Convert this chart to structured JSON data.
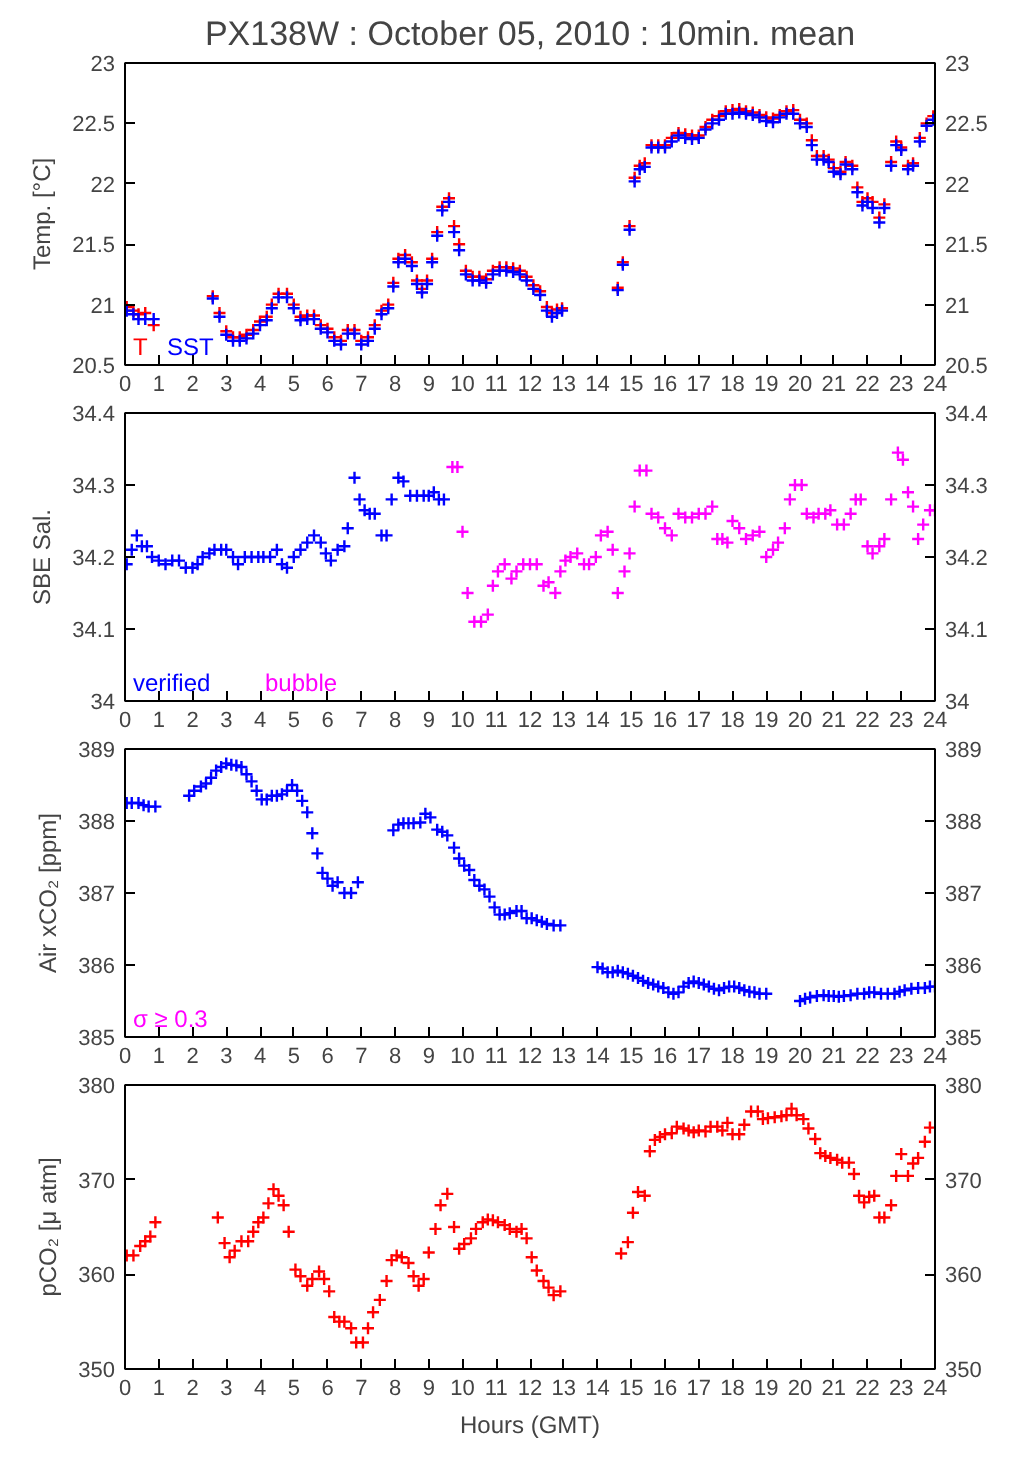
{
  "chart_data": [
    {
      "type": "scatter",
      "title": "PX138W : October 05, 2010 : 10min. mean",
      "ylabel": "Temp. [°C]",
      "marker": "cross",
      "legend": "bottom left",
      "xlim": [
        0,
        24
      ],
      "xticks": [
        0,
        1,
        2,
        3,
        4,
        5,
        6,
        7,
        8,
        9,
        10,
        11,
        12,
        13,
        14,
        15,
        16,
        17,
        18,
        19,
        20,
        21,
        22,
        23,
        24
      ],
      "ylim": [
        20.5,
        23
      ],
      "yticks": [
        20.5,
        21,
        21.5,
        22,
        22.5,
        23
      ],
      "y2lim": [
        20.5,
        23
      ],
      "y2ticks": [
        20.5,
        21,
        21.5,
        22,
        22.5,
        23
      ],
      "x": [
        0.05,
        0.25,
        0.4,
        0.6,
        0.85,
        2.6,
        2.8,
        3.0,
        3.2,
        3.4,
        3.6,
        3.8,
        4.0,
        4.2,
        4.35,
        4.55,
        4.8,
        5.0,
        5.2,
        5.4,
        5.6,
        5.8,
        6.0,
        6.2,
        6.4,
        6.6,
        6.8,
        7.0,
        7.2,
        7.4,
        7.6,
        7.8,
        7.95,
        8.1,
        8.3,
        8.5,
        8.65,
        8.8,
        8.95,
        9.1,
        9.25,
        9.4,
        9.6,
        9.75,
        9.9,
        10.1,
        10.3,
        10.5,
        10.7,
        10.9,
        11.1,
        11.3,
        11.5,
        11.7,
        11.9,
        12.1,
        12.3,
        12.5,
        12.65,
        12.8,
        12.95,
        14.6,
        14.75,
        14.95,
        15.1,
        15.25,
        15.4,
        15.6,
        15.8,
        16.0,
        16.2,
        16.4,
        16.6,
        16.8,
        17.0,
        17.2,
        17.4,
        17.6,
        17.8,
        18.0,
        18.2,
        18.4,
        18.6,
        18.8,
        19.0,
        19.2,
        19.4,
        19.6,
        19.8,
        20.0,
        20.2,
        20.35,
        20.5,
        20.7,
        20.85,
        21.0,
        21.2,
        21.35,
        21.55,
        21.7,
        21.85,
        22.0,
        22.15,
        22.35,
        22.5,
        22.7,
        22.85,
        23.0,
        23.2,
        23.35,
        23.55,
        23.75,
        23.95
      ],
      "series": [
        {
          "name": "T",
          "color": "#ff0000",
          "values": [
            20.98,
            20.95,
            20.92,
            20.93,
            20.83,
            21.07,
            20.93,
            20.78,
            20.73,
            20.73,
            20.75,
            20.79,
            20.86,
            20.9,
            21.0,
            21.09,
            21.09,
            21.0,
            20.9,
            20.91,
            20.91,
            20.83,
            20.8,
            20.73,
            20.7,
            20.79,
            20.79,
            20.7,
            20.73,
            20.83,
            20.95,
            21.0,
            21.18,
            21.38,
            21.41,
            21.35,
            21.2,
            21.13,
            21.2,
            21.38,
            21.6,
            21.81,
            21.88,
            21.65,
            21.5,
            21.28,
            21.23,
            21.23,
            21.21,
            21.28,
            21.31,
            21.31,
            21.3,
            21.28,
            21.23,
            21.16,
            21.11,
            20.98,
            20.93,
            20.96,
            20.97,
            21.14,
            21.35,
            21.65,
            22.05,
            22.15,
            22.17,
            22.32,
            22.32,
            22.32,
            22.38,
            22.42,
            22.41,
            22.4,
            22.4,
            22.47,
            22.53,
            22.56,
            22.6,
            22.61,
            22.62,
            22.6,
            22.59,
            22.57,
            22.55,
            22.54,
            22.57,
            22.6,
            22.61,
            22.53,
            22.5,
            22.36,
            22.23,
            22.23,
            22.2,
            22.13,
            22.1,
            22.18,
            22.15,
            21.97,
            21.85,
            21.88,
            21.85,
            21.72,
            21.83,
            22.18,
            22.35,
            22.3,
            22.15,
            22.17,
            22.38,
            22.5,
            22.56
          ]
        },
        {
          "name": "SST",
          "color": "#0000ff",
          "values": [
            20.95,
            20.92,
            20.88,
            20.88,
            20.88,
            21.05,
            20.9,
            20.75,
            20.7,
            20.7,
            20.72,
            20.76,
            20.83,
            20.87,
            20.97,
            21.06,
            21.06,
            20.97,
            20.87,
            20.88,
            20.88,
            20.8,
            20.77,
            20.7,
            20.67,
            20.76,
            20.76,
            20.67,
            20.7,
            20.8,
            20.92,
            20.97,
            21.15,
            21.35,
            21.38,
            21.32,
            21.17,
            21.1,
            21.17,
            21.35,
            21.57,
            21.78,
            21.85,
            21.6,
            21.45,
            21.25,
            21.2,
            21.2,
            21.18,
            21.25,
            21.28,
            21.28,
            21.27,
            21.25,
            21.2,
            21.13,
            21.08,
            20.95,
            20.9,
            20.93,
            20.95,
            21.12,
            21.33,
            21.62,
            22.02,
            22.12,
            22.14,
            22.3,
            22.3,
            22.3,
            22.35,
            22.4,
            22.38,
            22.37,
            22.38,
            22.45,
            22.5,
            22.53,
            22.58,
            22.58,
            22.59,
            22.58,
            22.57,
            22.55,
            22.52,
            22.51,
            22.55,
            22.58,
            22.58,
            22.5,
            22.47,
            22.32,
            22.2,
            22.2,
            22.18,
            22.1,
            22.08,
            22.16,
            22.12,
            21.93,
            21.82,
            21.85,
            21.8,
            21.68,
            21.8,
            22.15,
            22.32,
            22.28,
            22.12,
            22.15,
            22.35,
            22.48,
            22.53
          ]
        }
      ]
    },
    {
      "type": "scatter",
      "ylabel": "SBE Sal.",
      "marker": "cross",
      "legend": "bottom left",
      "xlim": [
        0,
        24
      ],
      "xticks": [
        0,
        1,
        2,
        3,
        4,
        5,
        6,
        7,
        8,
        9,
        10,
        11,
        12,
        13,
        14,
        15,
        16,
        17,
        18,
        19,
        20,
        21,
        22,
        23,
        24
      ],
      "ylim": [
        34,
        34.4
      ],
      "yticks": [
        34,
        34.1,
        34.2,
        34.3,
        34.4
      ],
      "y2lim": [
        34,
        34.4
      ],
      "y2ticks": [
        34,
        34.1,
        34.2,
        34.3,
        34.4
      ],
      "series": [
        {
          "name": "verified",
          "color": "#0000ff",
          "x": [
            0.05,
            0.2,
            0.35,
            0.5,
            0.65,
            0.8,
            1.0,
            1.2,
            1.4,
            1.6,
            1.8,
            2.0,
            2.15,
            2.3,
            2.5,
            2.65,
            2.85,
            3.0,
            3.2,
            3.35,
            3.55,
            3.75,
            3.95,
            4.1,
            4.3,
            4.5,
            4.65,
            4.8,
            5.0,
            5.2,
            5.4,
            5.6,
            5.8,
            5.95,
            6.1,
            6.3,
            6.5,
            6.6,
            6.8,
            6.95,
            7.1,
            7.25,
            7.4,
            7.6,
            7.75,
            7.9,
            8.1,
            8.25,
            8.45,
            8.65,
            8.85,
            9.0,
            9.15,
            9.3,
            9.45
          ],
          "values": [
            34.19,
            34.21,
            34.23,
            34.215,
            34.215,
            34.2,
            34.195,
            34.19,
            34.195,
            34.195,
            34.185,
            34.185,
            34.19,
            34.2,
            34.205,
            34.21,
            34.21,
            34.21,
            34.2,
            34.19,
            34.2,
            34.2,
            34.2,
            34.2,
            34.2,
            34.21,
            34.19,
            34.185,
            34.2,
            34.21,
            34.22,
            34.23,
            34.22,
            34.205,
            34.195,
            34.21,
            34.215,
            34.24,
            34.31,
            34.28,
            34.265,
            34.26,
            34.26,
            34.23,
            34.23,
            34.28,
            34.31,
            34.305,
            34.285,
            34.285,
            34.285,
            34.285,
            34.29,
            34.28,
            34.28
          ]
        },
        {
          "name": "bubble",
          "color": "#ff00ff",
          "x": [
            9.7,
            9.85,
            10.0,
            10.15,
            10.35,
            10.55,
            10.75,
            10.9,
            11.05,
            11.25,
            11.45,
            11.6,
            11.8,
            12.0,
            12.2,
            12.4,
            12.55,
            12.75,
            12.9,
            13.05,
            13.2,
            13.4,
            13.6,
            13.75,
            13.95,
            14.1,
            14.3,
            14.45,
            14.6,
            14.8,
            14.95,
            15.1,
            15.25,
            15.45,
            15.6,
            15.8,
            16.0,
            16.2,
            16.4,
            16.6,
            16.8,
            17.0,
            17.2,
            17.4,
            17.55,
            17.7,
            17.85,
            18.0,
            18.2,
            18.4,
            18.6,
            18.8,
            19.0,
            19.2,
            19.35,
            19.55,
            19.7,
            19.85,
            20.05,
            20.2,
            20.4,
            20.55,
            20.75,
            20.9,
            21.1,
            21.3,
            21.5,
            21.65,
            21.8,
            22.0,
            22.15,
            22.35,
            22.5,
            22.7,
            22.9,
            23.05,
            23.2,
            23.35,
            23.5,
            23.65,
            23.85,
            24.0
          ],
          "values": [
            34.325,
            34.325,
            34.235,
            34.15,
            34.11,
            34.11,
            34.12,
            34.16,
            34.18,
            34.19,
            34.17,
            34.18,
            34.19,
            34.19,
            34.19,
            34.16,
            34.165,
            34.15,
            34.18,
            34.195,
            34.2,
            34.205,
            34.19,
            34.19,
            34.2,
            34.23,
            34.235,
            34.21,
            34.15,
            34.18,
            34.205,
            34.27,
            34.32,
            34.32,
            34.26,
            34.255,
            34.24,
            34.23,
            34.26,
            34.255,
            34.255,
            34.26,
            34.26,
            34.27,
            34.225,
            34.225,
            34.22,
            34.25,
            34.24,
            34.225,
            34.23,
            34.235,
            34.2,
            34.21,
            34.22,
            34.24,
            34.28,
            34.3,
            34.3,
            34.26,
            34.255,
            34.26,
            34.26,
            34.265,
            34.245,
            34.245,
            34.26,
            34.28,
            34.28,
            34.215,
            34.205,
            34.215,
            34.225,
            34.28,
            34.345,
            34.335,
            34.29,
            34.27,
            34.225,
            34.245,
            34.265,
            34.265
          ]
        }
      ]
    },
    {
      "type": "scatter",
      "ylabel": "Air xCO₂ [ppm]",
      "marker": "cross",
      "annotations": [
        "σ ≥ 0.3"
      ],
      "xlim": [
        0,
        24
      ],
      "xticks": [
        0,
        1,
        2,
        3,
        4,
        5,
        6,
        7,
        8,
        9,
        10,
        11,
        12,
        13,
        14,
        15,
        16,
        17,
        18,
        19,
        20,
        21,
        22,
        23,
        24
      ],
      "ylim": [
        385,
        389
      ],
      "yticks": [
        385,
        386,
        387,
        388,
        389
      ],
      "y2lim": [
        385,
        389
      ],
      "y2ticks": [
        385,
        386,
        387,
        388,
        389
      ],
      "series": [
        {
          "color": "#0000ff",
          "x": [
            0.05,
            0.2,
            0.4,
            0.55,
            0.7,
            0.9,
            1.9,
            2.05,
            2.25,
            2.4,
            2.55,
            2.7,
            2.85,
            3.0,
            3.15,
            3.3,
            3.45,
            3.6,
            3.75,
            3.9,
            4.05,
            4.2,
            4.35,
            4.5,
            4.65,
            4.8,
            4.95,
            5.1,
            5.25,
            5.4,
            5.55,
            5.7,
            5.85,
            6.0,
            6.15,
            6.3,
            6.5,
            6.7,
            6.9,
            7.95,
            8.1,
            8.25,
            8.4,
            8.55,
            8.75,
            8.9,
            9.05,
            9.25,
            9.4,
            9.55,
            9.75,
            9.9,
            10.05,
            10.2,
            10.35,
            10.5,
            10.65,
            10.8,
            10.95,
            11.1,
            11.25,
            11.4,
            11.6,
            11.75,
            11.9,
            12.05,
            12.2,
            12.35,
            12.5,
            12.7,
            12.9,
            14.0,
            14.15,
            14.3,
            14.45,
            14.6,
            14.75,
            14.9,
            15.05,
            15.2,
            15.35,
            15.5,
            15.65,
            15.8,
            15.95,
            16.1,
            16.25,
            16.4,
            16.55,
            16.7,
            16.85,
            17.0,
            17.15,
            17.3,
            17.45,
            17.6,
            17.75,
            17.9,
            18.05,
            18.2,
            18.35,
            18.5,
            18.65,
            18.8,
            19.0,
            20.0,
            20.15,
            20.3,
            20.5,
            20.7,
            20.85,
            21.0,
            21.15,
            21.3,
            21.5,
            21.7,
            21.9,
            22.05,
            22.2,
            22.4,
            22.6,
            22.8,
            22.95,
            23.1,
            23.3,
            23.5,
            23.7,
            23.85,
            24.0
          ],
          "values": [
            388.25,
            388.25,
            388.25,
            388.22,
            388.2,
            388.2,
            388.35,
            388.42,
            388.48,
            388.52,
            388.6,
            388.7,
            388.75,
            388.8,
            388.78,
            388.77,
            388.75,
            388.65,
            388.55,
            388.42,
            388.3,
            388.3,
            388.35,
            388.35,
            388.37,
            388.42,
            388.5,
            388.42,
            388.28,
            388.12,
            387.83,
            387.55,
            387.28,
            387.2,
            387.1,
            387.15,
            387.0,
            387.0,
            387.15,
            387.87,
            387.95,
            387.97,
            387.97,
            387.97,
            387.98,
            388.1,
            388.05,
            387.88,
            387.85,
            387.8,
            387.63,
            387.48,
            387.38,
            387.32,
            387.18,
            387.1,
            387.05,
            386.95,
            386.8,
            386.7,
            386.7,
            386.72,
            386.75,
            386.75,
            386.65,
            386.65,
            386.62,
            386.6,
            386.57,
            386.55,
            386.55,
            385.97,
            385.95,
            385.9,
            385.9,
            385.92,
            385.9,
            385.88,
            385.85,
            385.82,
            385.78,
            385.75,
            385.73,
            385.7,
            385.68,
            385.62,
            385.6,
            385.62,
            385.7,
            385.75,
            385.77,
            385.75,
            385.73,
            385.7,
            385.67,
            385.65,
            385.68,
            385.7,
            385.7,
            385.68,
            385.65,
            385.63,
            385.62,
            385.6,
            385.6,
            385.5,
            385.53,
            385.55,
            385.57,
            385.58,
            385.57,
            385.57,
            385.56,
            385.57,
            385.58,
            385.6,
            385.6,
            385.62,
            385.62,
            385.6,
            385.6,
            385.6,
            385.63,
            385.65,
            385.67,
            385.68,
            385.68,
            385.7,
            385.7
          ]
        }
      ]
    },
    {
      "type": "scatter",
      "ylabel": "pCO₂ [μ atm]",
      "xlabel": "Hours (GMT)",
      "marker": "cross",
      "xlim": [
        0,
        24
      ],
      "xticks": [
        0,
        1,
        2,
        3,
        4,
        5,
        6,
        7,
        8,
        9,
        10,
        11,
        12,
        13,
        14,
        15,
        16,
        17,
        18,
        19,
        20,
        21,
        22,
        23,
        24
      ],
      "ylim": [
        350,
        380
      ],
      "yticks": [
        350,
        360,
        370,
        380
      ],
      "y2lim": [
        350,
        380
      ],
      "y2ticks": [
        350,
        360,
        370,
        380
      ],
      "series": [
        {
          "color": "#ff0000",
          "x": [
            0.05,
            0.25,
            0.45,
            0.6,
            0.75,
            0.9,
            2.75,
            2.95,
            3.1,
            3.25,
            3.45,
            3.65,
            3.8,
            3.95,
            4.1,
            4.25,
            4.4,
            4.55,
            4.7,
            4.85,
            5.05,
            5.2,
            5.4,
            5.55,
            5.75,
            5.9,
            6.05,
            6.2,
            6.35,
            6.5,
            6.7,
            6.85,
            7.05,
            7.2,
            7.35,
            7.55,
            7.75,
            7.9,
            8.05,
            8.2,
            8.4,
            8.55,
            8.7,
            8.85,
            9.0,
            9.2,
            9.35,
            9.55,
            9.75,
            9.9,
            10.05,
            10.25,
            10.4,
            10.6,
            10.75,
            10.9,
            11.05,
            11.25,
            11.4,
            11.6,
            11.75,
            11.9,
            12.05,
            12.2,
            12.4,
            12.55,
            12.7,
            12.9,
            14.7,
            14.9,
            15.05,
            15.2,
            15.4,
            15.55,
            15.7,
            15.85,
            16.0,
            16.2,
            16.35,
            16.55,
            16.7,
            16.85,
            17.0,
            17.2,
            17.35,
            17.55,
            17.7,
            17.85,
            18.0,
            18.2,
            18.35,
            18.55,
            18.75,
            18.9,
            19.05,
            19.25,
            19.45,
            19.6,
            19.75,
            19.9,
            20.1,
            20.25,
            20.45,
            20.6,
            20.75,
            20.9,
            21.1,
            21.25,
            21.45,
            21.6,
            21.75,
            21.9,
            22.05,
            22.2,
            22.35,
            22.5,
            22.7,
            22.85,
            23.0,
            23.2,
            23.35,
            23.5,
            23.7,
            23.85
          ],
          "values": [
            362,
            362,
            363,
            363.5,
            364,
            365.5,
            366,
            363.3,
            361.8,
            362.5,
            363.5,
            363.5,
            364.5,
            365.5,
            366,
            367.5,
            369,
            368.3,
            367.3,
            364.5,
            360.5,
            359.8,
            358.8,
            359.5,
            360.3,
            359.5,
            358.2,
            355.5,
            355,
            355,
            354.3,
            352.8,
            352.8,
            354.3,
            356,
            357.3,
            359.3,
            361.5,
            362,
            361.8,
            361.2,
            359.8,
            358.8,
            359.5,
            362.3,
            364.8,
            367.3,
            368.5,
            365,
            362.7,
            363.2,
            363.8,
            364.8,
            365.5,
            365.8,
            365.7,
            365.5,
            365.2,
            364.8,
            364.5,
            364.8,
            363.8,
            361.8,
            360.4,
            359.3,
            358.6,
            357.8,
            358.2,
            362.2,
            363.4,
            366.5,
            368.7,
            368.3,
            373,
            374.2,
            374.5,
            374.8,
            374.9,
            375.6,
            375.4,
            375.2,
            375,
            375.2,
            375.1,
            375.6,
            375.6,
            375.2,
            376,
            374.8,
            374.8,
            375.8,
            377.2,
            377.2,
            376.4,
            376.5,
            376.6,
            376.7,
            376.8,
            377.5,
            376.8,
            376.4,
            375.4,
            374.3,
            372.8,
            372.5,
            372.3,
            372.1,
            371.8,
            371.8,
            370.6,
            368.3,
            367.6,
            368.2,
            368.3,
            366,
            366,
            367.3,
            370.4,
            372.7,
            370.4,
            371.7,
            372.3,
            374,
            375.5
          ]
        }
      ]
    }
  ]
}
